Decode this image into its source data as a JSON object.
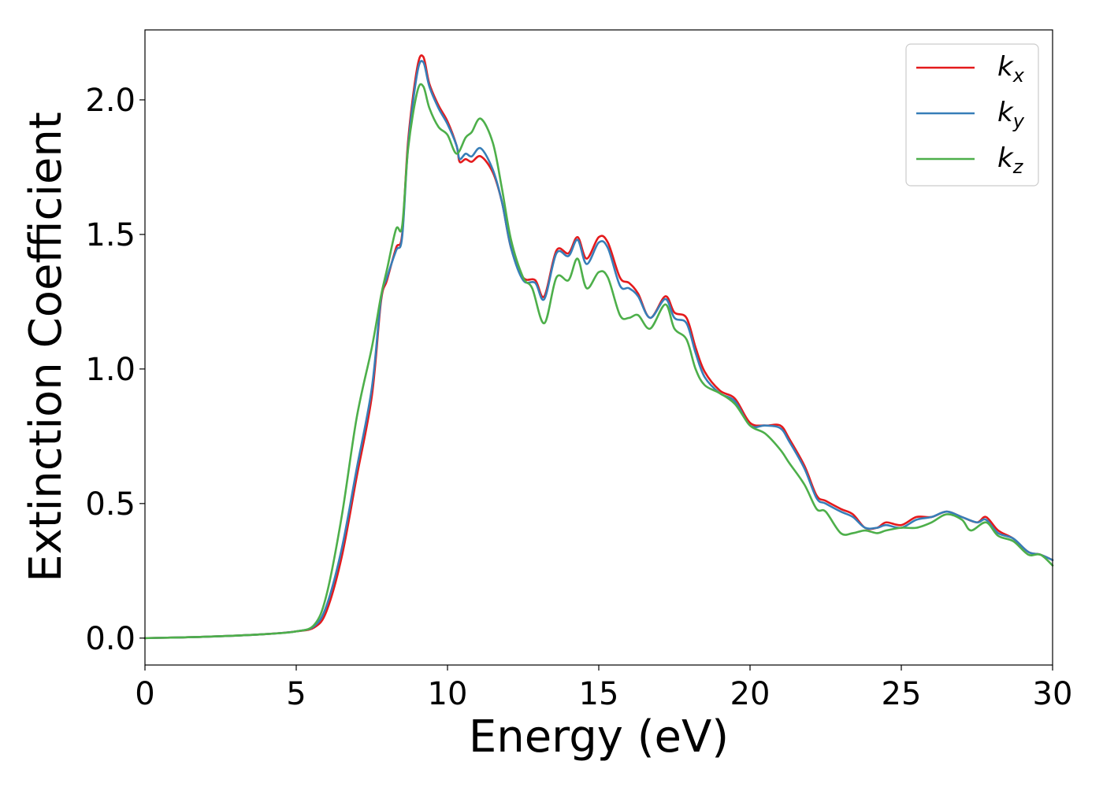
{
  "chart_data": {
    "type": "line",
    "xlabel": "Energy (eV)",
    "ylabel": "Extinction Coefficient",
    "xlim": [
      0,
      30
    ],
    "ylim": [
      -0.1,
      2.26
    ],
    "x_ticks": [
      0,
      5,
      10,
      15,
      20,
      25,
      30
    ],
    "x_tick_labels": [
      "0",
      "5",
      "10",
      "15",
      "20",
      "25",
      "30"
    ],
    "y_ticks": [
      0.0,
      0.5,
      1.0,
      1.5,
      2.0
    ],
    "y_tick_labels": [
      "0.0",
      "0.5",
      "1.0",
      "1.5",
      "2.0"
    ],
    "grid": false,
    "legend_position": "top-right",
    "series": [
      {
        "name": "kx",
        "legend_main": "k",
        "legend_sub": "x",
        "color": "#e41a1c",
        "points": [
          [
            0,
            0
          ],
          [
            2,
            0.005
          ],
          [
            4,
            0.015
          ],
          [
            5,
            0.025
          ],
          [
            5.6,
            0.04
          ],
          [
            6,
            0.1
          ],
          [
            6.5,
            0.3
          ],
          [
            7,
            0.6
          ],
          [
            7.5,
            0.9
          ],
          [
            7.8,
            1.25
          ],
          [
            8,
            1.33
          ],
          [
            8.3,
            1.45
          ],
          [
            8.5,
            1.5
          ],
          [
            8.7,
            1.85
          ],
          [
            9,
            2.12
          ],
          [
            9.2,
            2.16
          ],
          [
            9.4,
            2.06
          ],
          [
            9.7,
            1.98
          ],
          [
            10,
            1.92
          ],
          [
            10.3,
            1.83
          ],
          [
            10.4,
            1.77
          ],
          [
            10.6,
            1.78
          ],
          [
            10.8,
            1.77
          ],
          [
            11.1,
            1.79
          ],
          [
            11.5,
            1.73
          ],
          [
            11.8,
            1.62
          ],
          [
            12.1,
            1.45
          ],
          [
            12.5,
            1.34
          ],
          [
            12.9,
            1.33
          ],
          [
            13.2,
            1.27
          ],
          [
            13.6,
            1.44
          ],
          [
            14,
            1.43
          ],
          [
            14.3,
            1.49
          ],
          [
            14.6,
            1.41
          ],
          [
            15,
            1.49
          ],
          [
            15.3,
            1.47
          ],
          [
            15.7,
            1.34
          ],
          [
            16,
            1.32
          ],
          [
            16.3,
            1.28
          ],
          [
            16.7,
            1.19
          ],
          [
            17.2,
            1.27
          ],
          [
            17.5,
            1.21
          ],
          [
            17.9,
            1.19
          ],
          [
            18.2,
            1.08
          ],
          [
            18.5,
            0.99
          ],
          [
            19,
            0.92
          ],
          [
            19.5,
            0.89
          ],
          [
            20,
            0.8
          ],
          [
            20.5,
            0.79
          ],
          [
            21,
            0.79
          ],
          [
            21.3,
            0.74
          ],
          [
            21.8,
            0.64
          ],
          [
            22.2,
            0.53
          ],
          [
            22.5,
            0.51
          ],
          [
            23,
            0.48
          ],
          [
            23.4,
            0.46
          ],
          [
            23.8,
            0.41
          ],
          [
            24.2,
            0.41
          ],
          [
            24.5,
            0.43
          ],
          [
            25,
            0.42
          ],
          [
            25.5,
            0.45
          ],
          [
            26,
            0.45
          ],
          [
            26.5,
            0.47
          ],
          [
            27,
            0.45
          ],
          [
            27.5,
            0.43
          ],
          [
            27.8,
            0.45
          ],
          [
            28.2,
            0.4
          ],
          [
            28.7,
            0.37
          ],
          [
            29.2,
            0.32
          ],
          [
            29.6,
            0.31
          ],
          [
            30,
            0.29
          ]
        ]
      },
      {
        "name": "ky",
        "legend_main": "k",
        "legend_sub": "y",
        "color": "#377eb8",
        "points": [
          [
            0,
            0
          ],
          [
            2,
            0.005
          ],
          [
            4,
            0.015
          ],
          [
            5,
            0.025
          ],
          [
            5.6,
            0.045
          ],
          [
            6,
            0.12
          ],
          [
            6.5,
            0.33
          ],
          [
            7,
            0.63
          ],
          [
            7.5,
            0.93
          ],
          [
            7.8,
            1.26
          ],
          [
            8,
            1.34
          ],
          [
            8.3,
            1.44
          ],
          [
            8.5,
            1.49
          ],
          [
            8.7,
            1.83
          ],
          [
            9,
            2.1
          ],
          [
            9.2,
            2.14
          ],
          [
            9.4,
            2.05
          ],
          [
            9.7,
            1.97
          ],
          [
            10,
            1.91
          ],
          [
            10.3,
            1.83
          ],
          [
            10.4,
            1.78
          ],
          [
            10.6,
            1.8
          ],
          [
            10.8,
            1.79
          ],
          [
            11.1,
            1.82
          ],
          [
            11.5,
            1.74
          ],
          [
            11.8,
            1.62
          ],
          [
            12.1,
            1.45
          ],
          [
            12.5,
            1.33
          ],
          [
            12.9,
            1.32
          ],
          [
            13.2,
            1.26
          ],
          [
            13.6,
            1.43
          ],
          [
            14,
            1.42
          ],
          [
            14.3,
            1.48
          ],
          [
            14.6,
            1.39
          ],
          [
            15,
            1.47
          ],
          [
            15.3,
            1.45
          ],
          [
            15.7,
            1.31
          ],
          [
            16,
            1.3
          ],
          [
            16.3,
            1.27
          ],
          [
            16.7,
            1.19
          ],
          [
            17.2,
            1.26
          ],
          [
            17.5,
            1.19
          ],
          [
            17.9,
            1.17
          ],
          [
            18.2,
            1.06
          ],
          [
            18.5,
            0.97
          ],
          [
            19,
            0.91
          ],
          [
            19.5,
            0.88
          ],
          [
            20,
            0.79
          ],
          [
            20.5,
            0.79
          ],
          [
            21,
            0.78
          ],
          [
            21.3,
            0.73
          ],
          [
            21.8,
            0.63
          ],
          [
            22.2,
            0.52
          ],
          [
            22.5,
            0.5
          ],
          [
            23,
            0.47
          ],
          [
            23.4,
            0.45
          ],
          [
            23.8,
            0.41
          ],
          [
            24.2,
            0.41
          ],
          [
            24.5,
            0.42
          ],
          [
            25,
            0.41
          ],
          [
            25.5,
            0.44
          ],
          [
            26,
            0.45
          ],
          [
            26.5,
            0.47
          ],
          [
            27,
            0.45
          ],
          [
            27.5,
            0.43
          ],
          [
            27.8,
            0.44
          ],
          [
            28.2,
            0.39
          ],
          [
            28.7,
            0.37
          ],
          [
            29.2,
            0.32
          ],
          [
            29.6,
            0.31
          ],
          [
            30,
            0.29
          ]
        ]
      },
      {
        "name": "kz",
        "legend_main": "k",
        "legend_sub": "z",
        "color": "#4daf4a",
        "points": [
          [
            0,
            0
          ],
          [
            2,
            0.005
          ],
          [
            4,
            0.015
          ],
          [
            5,
            0.025
          ],
          [
            5.6,
            0.05
          ],
          [
            6,
            0.16
          ],
          [
            6.5,
            0.45
          ],
          [
            7,
            0.82
          ],
          [
            7.5,
            1.08
          ],
          [
            7.8,
            1.27
          ],
          [
            8,
            1.37
          ],
          [
            8.3,
            1.52
          ],
          [
            8.5,
            1.53
          ],
          [
            8.7,
            1.82
          ],
          [
            9,
            2.03
          ],
          [
            9.2,
            2.05
          ],
          [
            9.4,
            1.97
          ],
          [
            9.7,
            1.9
          ],
          [
            10,
            1.87
          ],
          [
            10.3,
            1.8
          ],
          [
            10.6,
            1.86
          ],
          [
            10.8,
            1.88
          ],
          [
            11.1,
            1.93
          ],
          [
            11.5,
            1.84
          ],
          [
            11.8,
            1.67
          ],
          [
            12.1,
            1.48
          ],
          [
            12.5,
            1.34
          ],
          [
            12.8,
            1.3
          ],
          [
            13.2,
            1.17
          ],
          [
            13.6,
            1.34
          ],
          [
            14,
            1.33
          ],
          [
            14.3,
            1.41
          ],
          [
            14.6,
            1.3
          ],
          [
            15,
            1.36
          ],
          [
            15.3,
            1.34
          ],
          [
            15.7,
            1.2
          ],
          [
            16,
            1.19
          ],
          [
            16.3,
            1.2
          ],
          [
            16.7,
            1.15
          ],
          [
            17.2,
            1.24
          ],
          [
            17.5,
            1.15
          ],
          [
            17.9,
            1.11
          ],
          [
            18.2,
            1.0
          ],
          [
            18.5,
            0.94
          ],
          [
            19,
            0.91
          ],
          [
            19.5,
            0.87
          ],
          [
            20,
            0.79
          ],
          [
            20.5,
            0.76
          ],
          [
            21,
            0.7
          ],
          [
            21.3,
            0.65
          ],
          [
            21.8,
            0.57
          ],
          [
            22.2,
            0.48
          ],
          [
            22.5,
            0.47
          ],
          [
            23,
            0.39
          ],
          [
            23.4,
            0.39
          ],
          [
            23.8,
            0.4
          ],
          [
            24.2,
            0.39
          ],
          [
            24.5,
            0.4
          ],
          [
            25,
            0.41
          ],
          [
            25.5,
            0.41
          ],
          [
            26,
            0.43
          ],
          [
            26.5,
            0.46
          ],
          [
            27,
            0.44
          ],
          [
            27.3,
            0.4
          ],
          [
            27.8,
            0.43
          ],
          [
            28.2,
            0.38
          ],
          [
            28.7,
            0.36
          ],
          [
            29.2,
            0.31
          ],
          [
            29.6,
            0.31
          ],
          [
            30,
            0.27
          ]
        ]
      }
    ]
  }
}
